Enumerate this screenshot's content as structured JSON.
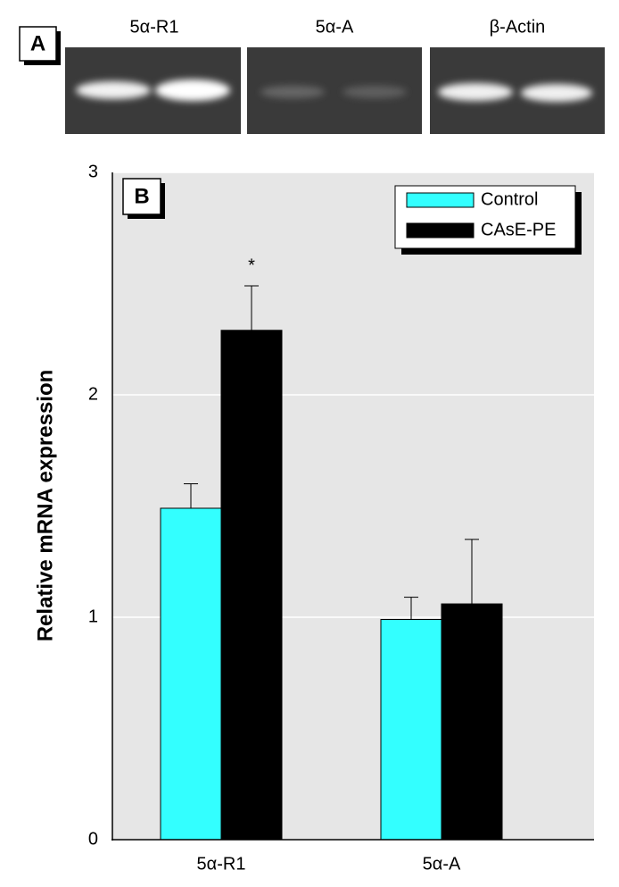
{
  "panel_a": {
    "label": "A",
    "lanes": [
      "5α-R1",
      "5α-A",
      "β-Actin"
    ]
  },
  "chart_data": {
    "type": "bar",
    "panel_label": "B",
    "ylabel": "Relative mRNA expression",
    "categories": [
      "5α-R1",
      "5α-A"
    ],
    "series": [
      {
        "name": "Control",
        "color": "#33ffff",
        "values": [
          1.49,
          0.99
        ],
        "errors": [
          0.11,
          0.1
        ]
      },
      {
        "name": "CAsE-PE",
        "color": "#000000",
        "values": [
          2.29,
          1.06
        ],
        "errors": [
          0.2,
          0.29
        ]
      }
    ],
    "annotation": "*",
    "ylim": [
      0,
      3
    ],
    "yticks": [
      0,
      1,
      2,
      3
    ],
    "grid": true,
    "legend": "upper right"
  }
}
